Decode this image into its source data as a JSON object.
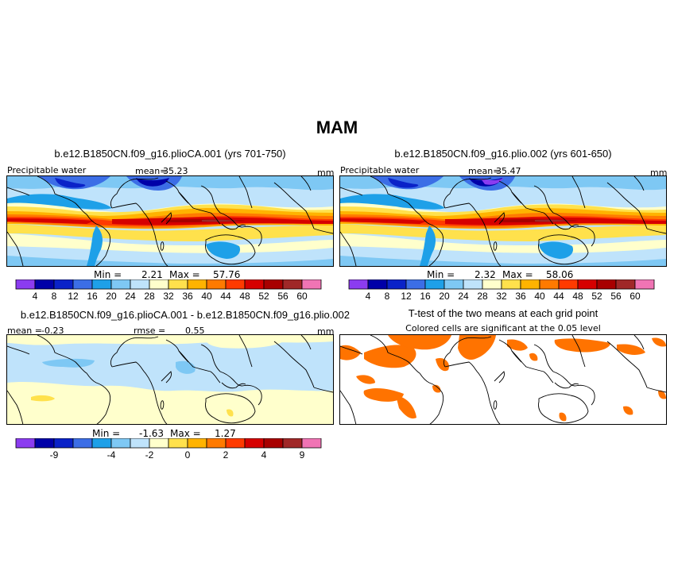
{
  "figure": {
    "title": "MAM",
    "colors": {
      "precip_levels": [
        "#8b3cf0",
        "#0000a8",
        "#0a22c8",
        "#3c6ee6",
        "#1ea0e8",
        "#7ec8f4",
        "#bfe3fb",
        "#ffffcc",
        "#ffe14c",
        "#ffb300",
        "#ff7a00",
        "#ff3a00",
        "#d60000",
        "#a80000",
        "#a02828",
        "#f074b4"
      ],
      "diff_levels": [
        "#8b3cf0",
        "#0000a8",
        "#0a22c8",
        "#3c6ee6",
        "#1ea0e8",
        "#7ec8f4",
        "#bfe3fb",
        "#ffffcc",
        "#ffe14c",
        "#ffb300",
        "#ff7a00",
        "#ff3a00",
        "#d60000",
        "#a80000",
        "#a02828",
        "#f074b4"
      ],
      "significant": "#ff7300"
    }
  },
  "panels": {
    "p1": {
      "title": "b.e12.B1850CN.f09_g16.plioCA.001 (yrs 701-750)",
      "variable": "Precipitable water",
      "mean_label": "mean=",
      "mean_value": "35.23",
      "units": "mm",
      "min_label": "Min =",
      "min_value": "2.21",
      "max_label": "Max =",
      "max_value": "57.76"
    },
    "p2": {
      "title": "b.e12.B1850CN.f09_g16.plio.002 (yrs 601-650)",
      "variable": "Precipitable water",
      "mean_label": "mean=",
      "mean_value": "35.47",
      "units": "mm",
      "min_label": "Min =",
      "min_value": "2.32",
      "max_label": "Max =",
      "max_value": "58.06"
    },
    "p3": {
      "title": "b.e12.B1850CN.f09_g16.plioCA.001 - b.e12.B1850CN.f09_g16.plio.002",
      "mean_label": "mean =",
      "mean_value": "-0.23",
      "rmse_label": "rmse =",
      "rmse_value": "0.55",
      "units": "mm",
      "min_label": "Min =",
      "min_value": "-1.63",
      "max_label": "Max =",
      "max_value": "1.27"
    },
    "p4": {
      "title": "T-test of the two means at each grid point",
      "subtitle": "Colored cells are significant at the 0.05 level"
    }
  },
  "chart_data": [
    {
      "type": "heatmap",
      "name": "plioCA.001 precipitable water",
      "colorbar_ticks": [
        "4",
        "8",
        "12",
        "16",
        "20",
        "24",
        "28",
        "32",
        "36",
        "40",
        "44",
        "48",
        "52",
        "56",
        "60"
      ],
      "stats": {
        "mean": 35.23,
        "min": 2.21,
        "max": 57.76
      },
      "units": "mm"
    },
    {
      "type": "heatmap",
      "name": "plio.002 precipitable water",
      "colorbar_ticks": [
        "4",
        "8",
        "12",
        "16",
        "20",
        "24",
        "28",
        "32",
        "36",
        "40",
        "44",
        "48",
        "52",
        "56",
        "60"
      ],
      "stats": {
        "mean": 35.47,
        "min": 2.32,
        "max": 58.06
      },
      "units": "mm"
    },
    {
      "type": "heatmap",
      "name": "difference",
      "colorbar_ticks": [
        "-9",
        "-4",
        "-2",
        "0",
        "2",
        "4",
        "9"
      ],
      "stats": {
        "mean": -0.23,
        "rmse": 0.55,
        "min": -1.63,
        "max": 1.27
      },
      "units": "mm"
    },
    {
      "type": "heatmap",
      "name": "t-test significance",
      "significance_level": 0.05
    }
  ]
}
